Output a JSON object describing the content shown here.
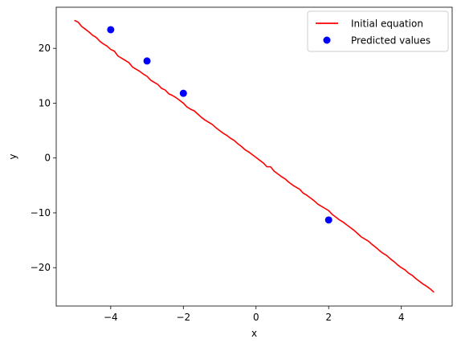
{
  "chart_data": {
    "type": "line",
    "xlabel": "x",
    "ylabel": "y",
    "xlim": [
      -5.5,
      5.4
    ],
    "ylim": [
      -27,
      27.5
    ],
    "xticks": [
      -4,
      -2,
      0,
      2,
      4
    ],
    "yticks": [
      -20,
      -10,
      0,
      10,
      20
    ],
    "grid": false,
    "legend_position": "top-right",
    "series": [
      {
        "name": "Initial equation",
        "kind": "line",
        "color": "#ff0000",
        "points": [
          [
            -5.0,
            25.1
          ],
          [
            -4.9,
            24.8
          ],
          [
            -4.8,
            24.0
          ],
          [
            -4.7,
            23.5
          ],
          [
            -4.6,
            23.0
          ],
          [
            -4.5,
            22.4
          ],
          [
            -4.4,
            22.0
          ],
          [
            -4.3,
            21.3
          ],
          [
            -4.2,
            20.8
          ],
          [
            -4.1,
            20.4
          ],
          [
            -4.0,
            19.8
          ],
          [
            -3.9,
            19.5
          ],
          [
            -3.8,
            18.6
          ],
          [
            -3.7,
            18.2
          ],
          [
            -3.6,
            17.8
          ],
          [
            -3.5,
            17.4
          ],
          [
            -3.4,
            16.6
          ],
          [
            -3.3,
            16.2
          ],
          [
            -3.2,
            15.8
          ],
          [
            -3.1,
            15.3
          ],
          [
            -3.0,
            14.9
          ],
          [
            -2.9,
            14.2
          ],
          [
            -2.8,
            13.8
          ],
          [
            -2.7,
            13.4
          ],
          [
            -2.6,
            12.7
          ],
          [
            -2.5,
            12.4
          ],
          [
            -2.4,
            11.7
          ],
          [
            -2.3,
            11.4
          ],
          [
            -2.2,
            11.0
          ],
          [
            -2.1,
            10.5
          ],
          [
            -2.0,
            10.0
          ],
          [
            -1.9,
            9.3
          ],
          [
            -1.8,
            8.9
          ],
          [
            -1.7,
            8.6
          ],
          [
            -1.6,
            8.0
          ],
          [
            -1.5,
            7.4
          ],
          [
            -1.4,
            6.9
          ],
          [
            -1.3,
            6.5
          ],
          [
            -1.2,
            6.1
          ],
          [
            -1.1,
            5.5
          ],
          [
            -1.0,
            5.0
          ],
          [
            -0.9,
            4.5
          ],
          [
            -0.8,
            4.1
          ],
          [
            -0.7,
            3.6
          ],
          [
            -0.6,
            3.2
          ],
          [
            -0.5,
            2.6
          ],
          [
            -0.4,
            2.1
          ],
          [
            -0.3,
            1.5
          ],
          [
            -0.2,
            1.1
          ],
          [
            -0.1,
            0.6
          ],
          [
            0.0,
            0.1
          ],
          [
            0.1,
            -0.4
          ],
          [
            0.2,
            -0.9
          ],
          [
            0.3,
            -1.6
          ],
          [
            0.4,
            -1.6
          ],
          [
            0.5,
            -2.4
          ],
          [
            0.6,
            -2.9
          ],
          [
            0.7,
            -3.4
          ],
          [
            0.8,
            -3.8
          ],
          [
            0.9,
            -4.4
          ],
          [
            1.0,
            -4.9
          ],
          [
            1.1,
            -5.3
          ],
          [
            1.2,
            -5.7
          ],
          [
            1.3,
            -6.4
          ],
          [
            1.4,
            -6.8
          ],
          [
            1.5,
            -7.3
          ],
          [
            1.6,
            -7.8
          ],
          [
            1.7,
            -8.4
          ],
          [
            1.8,
            -8.8
          ],
          [
            1.9,
            -9.2
          ],
          [
            2.0,
            -9.6
          ],
          [
            2.1,
            -10.3
          ],
          [
            2.2,
            -10.8
          ],
          [
            2.3,
            -11.3
          ],
          [
            2.4,
            -11.7
          ],
          [
            2.5,
            -12.2
          ],
          [
            2.6,
            -12.7
          ],
          [
            2.7,
            -13.2
          ],
          [
            2.8,
            -13.8
          ],
          [
            2.9,
            -14.4
          ],
          [
            3.0,
            -14.8
          ],
          [
            3.1,
            -15.2
          ],
          [
            3.2,
            -15.8
          ],
          [
            3.3,
            -16.3
          ],
          [
            3.4,
            -16.9
          ],
          [
            3.5,
            -17.4
          ],
          [
            3.6,
            -17.8
          ],
          [
            3.7,
            -18.4
          ],
          [
            3.8,
            -18.9
          ],
          [
            3.9,
            -19.5
          ],
          [
            4.0,
            -20.0
          ],
          [
            4.1,
            -20.4
          ],
          [
            4.2,
            -21.0
          ],
          [
            4.3,
            -21.4
          ],
          [
            4.4,
            -22.0
          ],
          [
            4.5,
            -22.5
          ],
          [
            4.6,
            -23.0
          ],
          [
            4.7,
            -23.4
          ],
          [
            4.8,
            -23.9
          ],
          [
            4.9,
            -24.5
          ]
        ]
      },
      {
        "name": "Predicted values",
        "kind": "scatter",
        "color": "#0000ff",
        "points": [
          [
            -4,
            23.4
          ],
          [
            -3,
            17.7
          ],
          [
            -2,
            11.8
          ],
          [
            2,
            -11.3
          ]
        ]
      }
    ]
  }
}
